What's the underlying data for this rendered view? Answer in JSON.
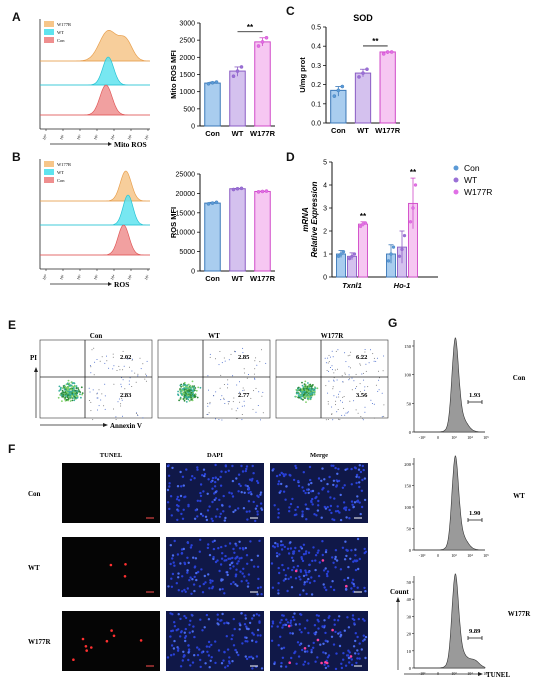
{
  "panel_letters": {
    "A": "A",
    "B": "B",
    "C": "C",
    "D": "D",
    "E": "E",
    "F": "F",
    "G": "G"
  },
  "colors": {
    "orange_fill": "#f6c68a",
    "cyan_fill": "#5fe3ee",
    "red_fill": "#ef8f8f",
    "bar_blue": "#a9cdef",
    "bar_purple": "#d4c1ee",
    "bar_pink": "#f6c7f2",
    "edge_blue": "#3a78b8",
    "edge_purple": "#8a5cc4",
    "edge_pink": "#d048c8",
    "dot_blue": "#5b9ad6",
    "dot_purple": "#9a70d6",
    "dot_pink": "#e070e6"
  },
  "hist_A": {
    "legend": [
      "W177R",
      "WT",
      "Con"
    ],
    "xlabel": "Mito ROS"
  },
  "hist_B": {
    "legend": [
      "W177R",
      "WT",
      "Con"
    ],
    "xlabel": "ROS"
  },
  "chart_data": [
    {
      "id": "A",
      "type": "bar",
      "categories": [
        "Con",
        "WT",
        "W177R"
      ],
      "values": [
        1250,
        1600,
        2450
      ],
      "points": [
        [
          1230,
          1260,
          1280
        ],
        [
          1450,
          1600,
          1720
        ],
        [
          2330,
          2450,
          2570
        ]
      ],
      "ylabel": "Mito ROS MFI",
      "ylim": [
        0,
        3000
      ],
      "yticks": [
        "0",
        "500",
        "1000",
        "1500",
        "2000",
        "2500",
        "3000"
      ],
      "sig": "**"
    },
    {
      "id": "B",
      "type": "bar",
      "categories": [
        "Con",
        "WT",
        "W177R"
      ],
      "values": [
        17500,
        21200,
        20500
      ],
      "points": [
        [
          17300,
          17500,
          17700
        ],
        [
          21000,
          21200,
          21300
        ],
        [
          20400,
          20500,
          20600
        ]
      ],
      "ylabel": "ROS MFI",
      "ylim": [
        0,
        25000
      ],
      "yticks": [
        "0",
        "5000",
        "10000",
        "15000",
        "20000",
        "25000"
      ]
    },
    {
      "id": "C",
      "type": "bar",
      "title": "SOD",
      "categories": [
        "Con",
        "WT",
        "W177R"
      ],
      "values": [
        0.17,
        0.26,
        0.37
      ],
      "points": [
        [
          0.14,
          0.17,
          0.19
        ],
        [
          0.24,
          0.26,
          0.28
        ],
        [
          0.36,
          0.37,
          0.37
        ]
      ],
      "ylabel": "U/mg prot",
      "ylim": [
        0,
        0.5
      ],
      "yticks": [
        "0.0",
        "0.1",
        "0.2",
        "0.3",
        "0.4",
        "0.5"
      ],
      "sig": "**"
    },
    {
      "id": "D",
      "type": "bar",
      "categories": [
        "Txnl1",
        "Ho-1"
      ],
      "series": [
        {
          "name": "Con",
          "values": [
            1.0,
            1.0
          ]
        },
        {
          "name": "WT",
          "values": [
            0.9,
            1.3
          ]
        },
        {
          "name": "W177R",
          "values": [
            2.3,
            3.2
          ]
        }
      ],
      "ylabel": "mRNA Relative Expression",
      "ylim": [
        0,
        5
      ],
      "yticks": [
        "0",
        "1",
        "2",
        "3",
        "4",
        "5"
      ],
      "sig": [
        "**",
        "**"
      ]
    }
  ],
  "panel_E": {
    "samples": [
      "Con",
      "WT",
      "W177R"
    ],
    "ur": [
      "2.02",
      "2.85",
      "6.22"
    ],
    "lr": [
      "2.83",
      "2.77",
      "3.56"
    ],
    "ylabel": "PI",
    "xlabel": "Annexin V"
  },
  "panel_F": {
    "columns": [
      "TUNEL",
      "DAPI",
      "Merge"
    ],
    "rows": [
      "Con",
      "WT",
      "W177R"
    ]
  },
  "panel_G": {
    "samples": [
      "Con",
      "WT",
      "W177R"
    ],
    "pct": [
      "1.93",
      "1.90",
      "9.89"
    ],
    "ylabel": "Count",
    "xlabel": "TUNEL",
    "yticks": [
      [
        "0",
        "50",
        "100",
        "150"
      ],
      [
        "0",
        "50",
        "100",
        "150",
        "200"
      ],
      [
        "0",
        "10",
        "20",
        "30",
        "40",
        "50"
      ]
    ]
  }
}
